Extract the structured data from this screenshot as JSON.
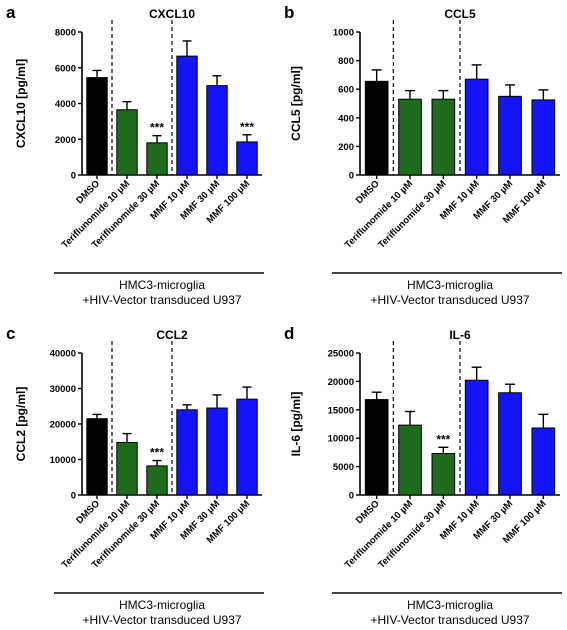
{
  "colors": {
    "DMSO": "#000000",
    "Teriflunomide": "#1e6b1e",
    "MMF": "#1414ff"
  },
  "chart_data": [
    {
      "type": "bar",
      "panel": "a",
      "title": "CXCL10",
      "ylabel": "CXCL10 [pg/ml]",
      "ylim": [
        0,
        8000
      ],
      "yticks": [
        0,
        2000,
        4000,
        6000,
        8000
      ],
      "categories": [
        "DMSO",
        "Teriflunomide 10 µM",
        "Teriflunomide 30 µM",
        "MMF 10 µM",
        "MMF 30 µM",
        "MMF 100 µM"
      ],
      "values": [
        5450,
        3650,
        1800,
        6650,
        5000,
        1850
      ],
      "errors": [
        400,
        450,
        400,
        850,
        550,
        400
      ],
      "significance": [
        "",
        "",
        "***",
        "",
        "",
        "***"
      ],
      "footer": [
        "HMC3-microglia",
        "+HIV-Vector transduced U937"
      ]
    },
    {
      "type": "bar",
      "panel": "b",
      "title": "CCL5",
      "ylabel": "CCL5 [pg/ml]",
      "ylim": [
        0,
        1000
      ],
      "yticks": [
        0,
        200,
        400,
        600,
        800,
        1000
      ],
      "categories": [
        "DMSO",
        "Teriflunomide 10 µM",
        "Teriflunomide 30 µM",
        "MMF 10 µM",
        "MMF 30 µM",
        "MMF 100 µM"
      ],
      "values": [
        655,
        530,
        530,
        670,
        550,
        525
      ],
      "errors": [
        80,
        60,
        60,
        100,
        80,
        70
      ],
      "significance": [
        "",
        "",
        "",
        "",
        "",
        ""
      ],
      "footer": [
        "HMC3-microglia",
        "+HIV-Vector transduced U937"
      ]
    },
    {
      "type": "bar",
      "panel": "c",
      "title": "CCL2",
      "ylabel": "CCL2 [pg/ml]",
      "ylim": [
        0,
        40000
      ],
      "yticks": [
        0,
        10000,
        20000,
        30000,
        40000
      ],
      "categories": [
        "DMSO",
        "Teriflunomide 10 µM",
        "Teriflunomide 30 µM",
        "MMF 10 µM",
        "MMF 30 µM",
        "MMF 100 µM"
      ],
      "values": [
        21500,
        14800,
        8200,
        24000,
        24500,
        27000
      ],
      "errors": [
        1200,
        2500,
        1500,
        1400,
        3700,
        3400
      ],
      "significance": [
        "",
        "",
        "***",
        "",
        "",
        ""
      ],
      "footer": [
        "HMC3-microglia",
        "+HIV-Vector transduced U937"
      ]
    },
    {
      "type": "bar",
      "panel": "d",
      "title": "IL-6",
      "ylabel": "IL-6 [pg/ml]",
      "ylim": [
        0,
        25000
      ],
      "yticks": [
        0,
        5000,
        10000,
        15000,
        20000,
        25000
      ],
      "categories": [
        "DMSO",
        "Teriflunomide 10 µM",
        "Teriflunomide 30 µM",
        "MMF 10 µM",
        "MMF 30 µM",
        "MMF 100 µM"
      ],
      "values": [
        16800,
        12300,
        7300,
        20200,
        18000,
        11800
      ],
      "errors": [
        1300,
        2400,
        1100,
        2300,
        1500,
        2400
      ],
      "significance": [
        "",
        "",
        "***",
        "",
        "",
        ""
      ],
      "footer": [
        "HMC3-microglia",
        "+HIV-Vector transduced U937"
      ]
    }
  ]
}
